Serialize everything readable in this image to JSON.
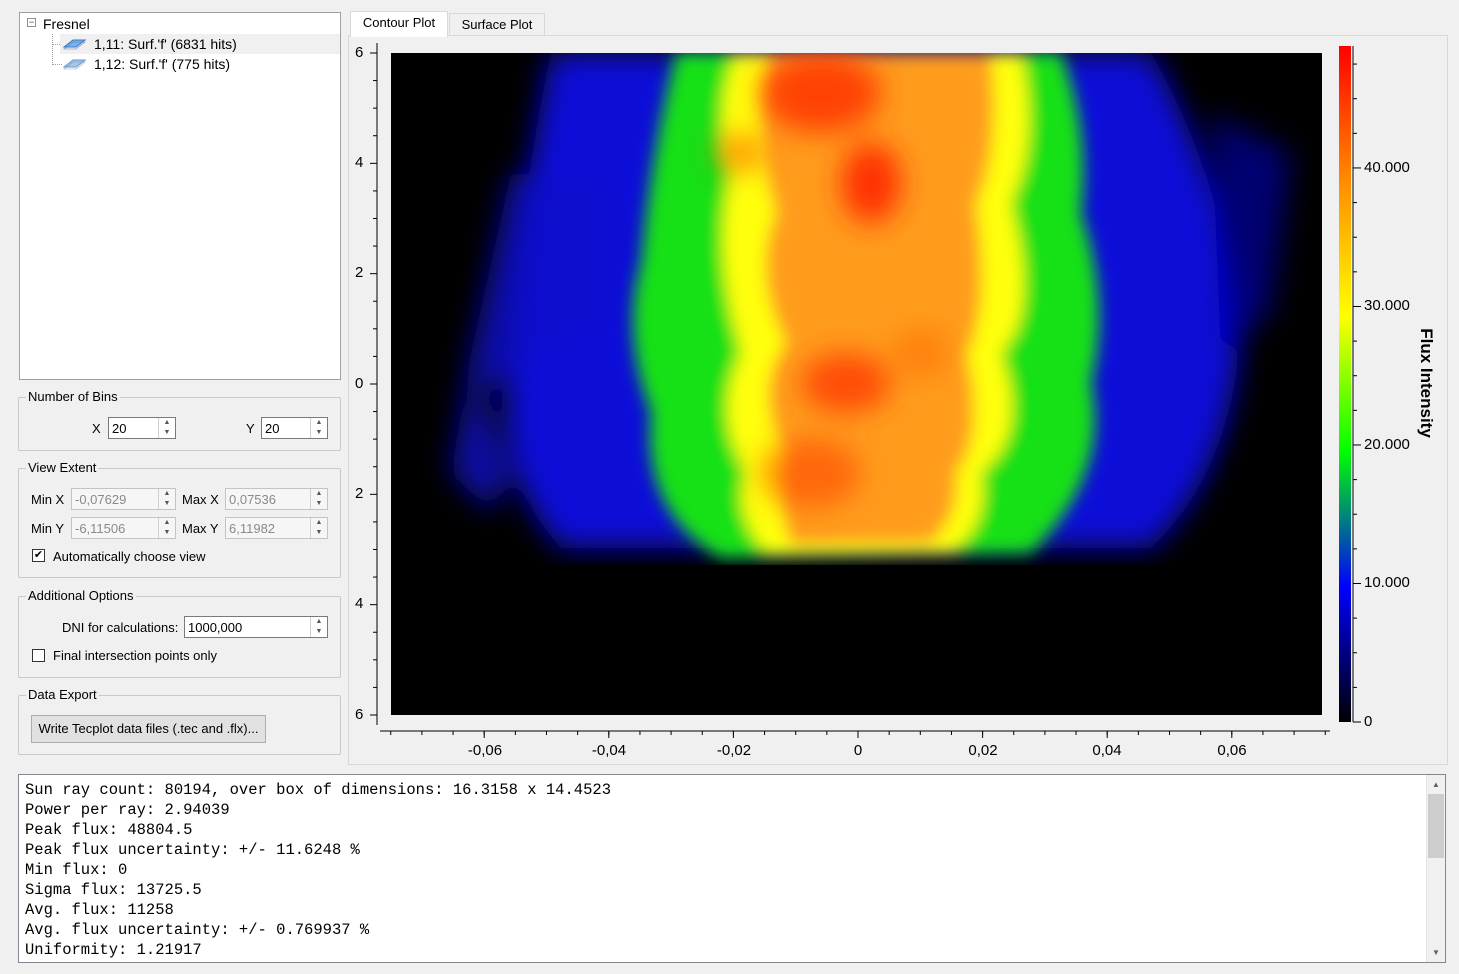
{
  "tree": {
    "root": "Fresnel",
    "items": [
      {
        "label": "1,11: Surf.'f' (6831 hits)",
        "selected": true
      },
      {
        "label": "1,12: Surf.'f' (775 hits)",
        "selected": false
      }
    ]
  },
  "bins": {
    "title": "Number of Bins",
    "x_label": "X",
    "x_value": "20",
    "y_label": "Y",
    "y_value": "20"
  },
  "view_extent": {
    "title": "View Extent",
    "min_x_label": "Min X",
    "min_x": "-0,07629",
    "max_x_label": "Max X",
    "max_x": "0,07536",
    "min_y_label": "Min Y",
    "min_y": "-6,11506",
    "max_y_label": "Max Y",
    "max_y": "6,11982",
    "auto_label": "Automatically choose view",
    "auto_checked": true
  },
  "additional": {
    "title": "Additional Options",
    "dni_label": "DNI for calculations:",
    "dni_value": "1000,000",
    "final_label": "Final intersection points only",
    "final_checked": false
  },
  "export": {
    "title": "Data Export",
    "button": "Write Tecplot data files (.tec and .flx)..."
  },
  "tabs": [
    {
      "label": "Contour Plot",
      "active": true
    },
    {
      "label": "Surface Plot",
      "active": false
    }
  ],
  "plot": {
    "y_ticks": [
      "6",
      "4",
      "2",
      "0",
      "2",
      "4",
      "6"
    ],
    "x_ticks": [
      "-0,06",
      "-0,04",
      "-0,02",
      "0",
      "0,02",
      "0,04",
      "0,06"
    ],
    "colorbar_title": "Flux Intensity",
    "colorbar_ticks": [
      "40.000",
      "30.000",
      "20.000",
      "10.000",
      "0"
    ]
  },
  "chart_data": {
    "type": "heatmap",
    "title": "",
    "colorbar_label": "Flux Intensity",
    "x_ticks": [
      -0.06,
      -0.04,
      -0.02,
      0,
      0.02,
      0.04,
      0.06
    ],
    "y_ticks": [
      6,
      4,
      2,
      0,
      -2,
      -4,
      -6
    ],
    "xlim": [
      -0.07629,
      0.07536
    ],
    "ylim": [
      -6.11506,
      6.11982
    ],
    "value_range": [
      0,
      48804.5
    ],
    "colormap": [
      "#000000",
      "#0000ff",
      "#00ff00",
      "#ffff00",
      "#ff8000",
      "#ff0000"
    ],
    "x_bins": 20,
    "y_bins": 20
  },
  "output_lines": [
    "Sun ray count: 80194, over box of dimensions: 16.3158 x 14.4523",
    "Power per ray: 2.94039",
    "Peak flux: 48804.5",
    "Peak flux uncertainty: +/- 11.6248 %",
    "Min flux: 0",
    "Sigma flux: 13725.5",
    "Avg. flux: 11258",
    "Avg. flux uncertainty: +/- 0.769937 %",
    "Uniformity: 1.21917"
  ]
}
